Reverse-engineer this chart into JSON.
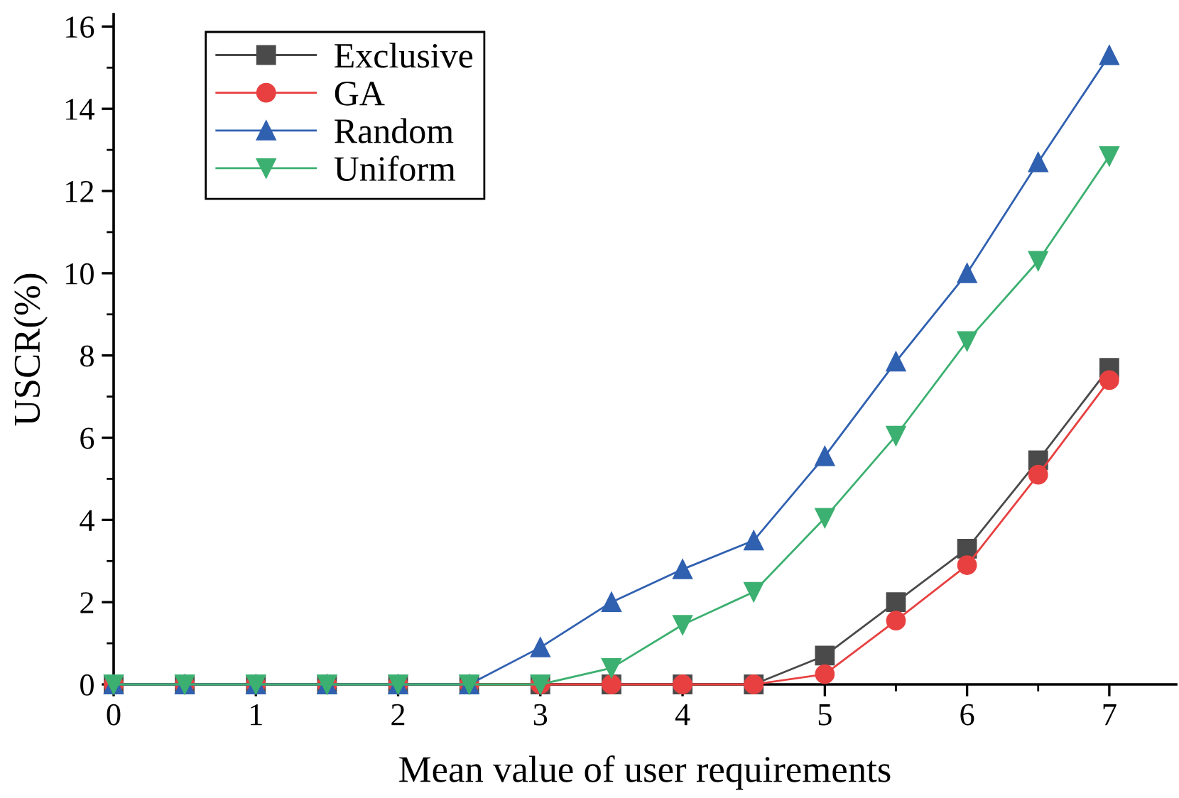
{
  "chart_data": {
    "type": "line",
    "xlabel": "Mean value of user requirements",
    "ylabel": "USCR(%)",
    "x": [
      0,
      0.5,
      1,
      1.5,
      2,
      2.5,
      3,
      3.5,
      4,
      4.5,
      5,
      5.5,
      6,
      6.5,
      7
    ],
    "series": [
      {
        "name": "Exclusive",
        "color": "#4a4a4a",
        "marker": "square",
        "values": [
          0,
          0,
          0,
          0,
          0,
          0,
          0,
          0,
          0,
          0,
          0.7,
          2.0,
          3.3,
          5.45,
          7.7
        ]
      },
      {
        "name": "GA",
        "color": "#e84040",
        "marker": "circle",
        "values": [
          0,
          0,
          0,
          0,
          0,
          0,
          0,
          0,
          0,
          0,
          0.25,
          1.55,
          2.9,
          5.1,
          7.4
        ]
      },
      {
        "name": "Random",
        "color": "#3060b0",
        "marker": "triangle",
        "values": [
          0,
          0,
          0,
          0,
          0,
          0,
          0.9,
          2.0,
          2.8,
          3.5,
          5.55,
          7.85,
          10.0,
          12.7,
          15.3
        ]
      },
      {
        "name": "Uniform",
        "color": "#3cb070",
        "marker": "triangle_down",
        "values": [
          0,
          0,
          0,
          0,
          0,
          0,
          0,
          0.4,
          1.45,
          2.25,
          4.05,
          6.05,
          8.35,
          10.3,
          12.85
        ]
      }
    ],
    "xlim": [
      0,
      7.47
    ],
    "ylim": [
      0,
      16.3
    ],
    "xticks": [
      0,
      1,
      2,
      3,
      4,
      5,
      6,
      7
    ],
    "yticks": [
      0,
      2,
      4,
      6,
      8,
      10,
      12,
      14,
      16
    ],
    "grid": false,
    "legend": "top left",
    "line_style": "solid"
  }
}
